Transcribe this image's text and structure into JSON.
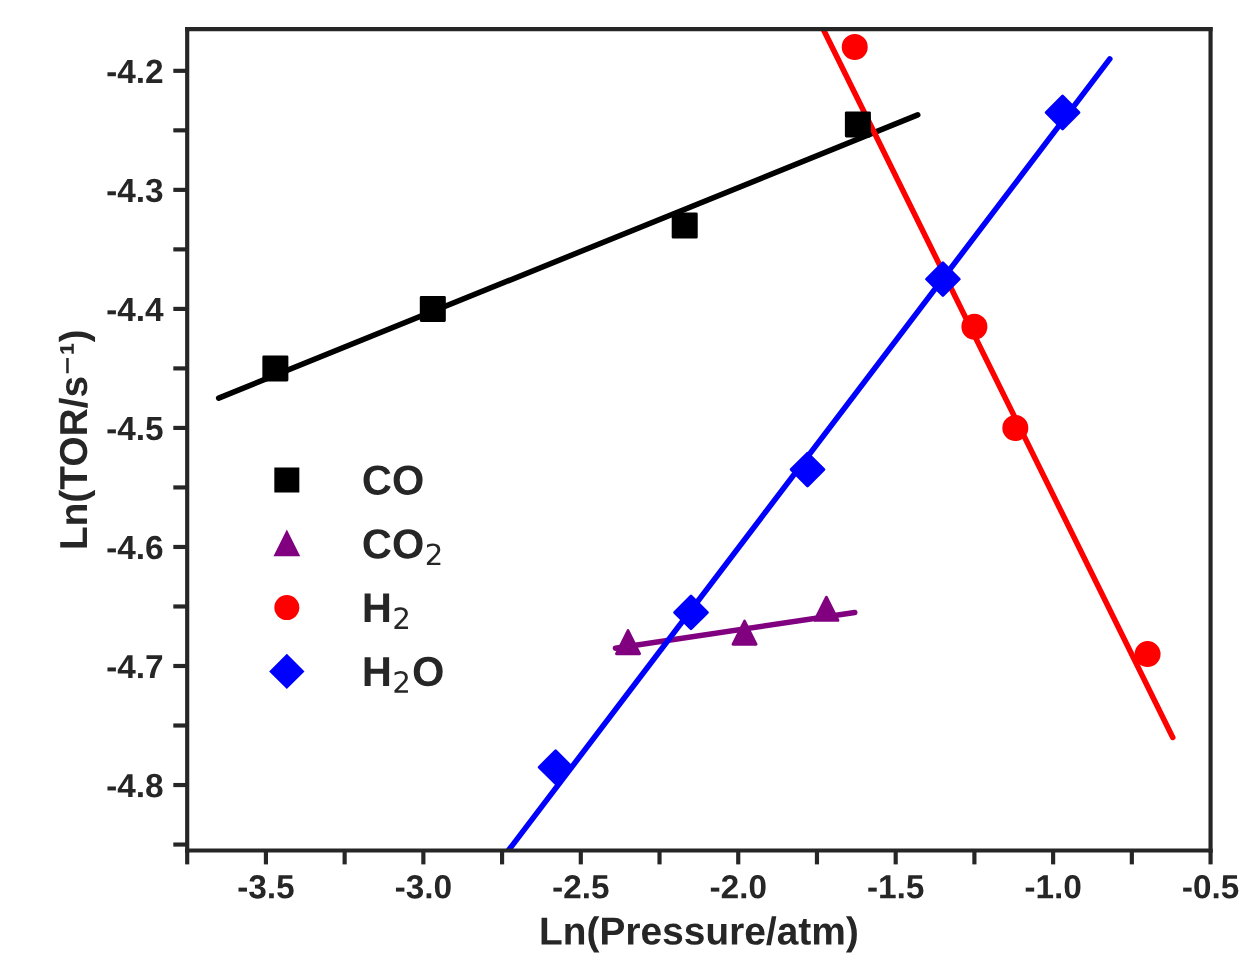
{
  "chart_data": {
    "type": "scatter",
    "xlabel": "Ln(Pressure/atm)",
    "ylabel": "Ln(TOR/s⁻¹)",
    "xlim": [
      -3.75,
      -0.5
    ],
    "ylim": [
      -4.855,
      -4.165
    ],
    "xticks": [
      {
        "value": -3.75,
        "label": null
      },
      -3.5,
      {
        "value": -3.25,
        "label": null
      },
      {
        "value": -3.0,
        "label": "-3.0"
      },
      {
        "value": -2.75,
        "label": null
      },
      -2.5,
      {
        "value": -2.25,
        "label": null
      },
      {
        "value": -2.0,
        "label": "-2.0"
      },
      {
        "value": -1.75,
        "label": null
      },
      -1.5,
      {
        "value": -1.25,
        "label": null
      },
      {
        "value": -1.0,
        "label": "-1.0"
      },
      {
        "value": -0.75,
        "label": null
      },
      -0.5
    ],
    "yticks": [
      {
        "value": -4.85,
        "label": null
      },
      -4.8,
      {
        "value": -4.75,
        "label": null
      },
      -4.7,
      {
        "value": -4.65,
        "label": null
      },
      -4.6,
      {
        "value": -4.55,
        "label": null
      },
      -4.5,
      {
        "value": -4.45,
        "label": null
      },
      -4.4,
      {
        "value": -4.35,
        "label": null
      },
      -4.3,
      {
        "value": -4.25,
        "label": null
      },
      -4.2
    ],
    "grid": false,
    "legend": "left",
    "series": [
      {
        "name": "CO",
        "marker": "square",
        "color": "#000000",
        "x": [
          -3.47,
          -2.97,
          -2.17,
          -1.62
        ],
        "values": [
          -4.45,
          -4.4,
          -4.33,
          -4.245
        ]
      },
      {
        "name": "CO$_{2}$",
        "marker": "triangle",
        "color": "#800080",
        "x": [
          -2.35,
          -1.98,
          -1.72
        ],
        "values": [
          -4.68,
          -4.672,
          -4.652
        ]
      },
      {
        "name": "H$_{2}$",
        "marker": "circle",
        "color": "#ff0000",
        "x": [
          -1.63,
          -1.25,
          -1.12,
          -0.7
        ],
        "values": [
          -4.18,
          -4.415,
          -4.5,
          -4.69
        ]
      },
      {
        "name": "H$_{2}$O",
        "marker": "diamond",
        "color": "#0000ff",
        "x": [
          -2.58,
          -2.15,
          -1.78,
          -1.35,
          -0.97
        ],
        "values": [
          -4.785,
          -4.655,
          -4.535,
          -4.375,
          -4.235
        ]
      },
      {
        "type": "line",
        "line_style": "solid",
        "color": "#000000",
        "x": [
          -3.65,
          -1.43
        ],
        "values": [
          -4.475,
          -4.237
        ]
      },
      {
        "type": "line",
        "line_style": "solid",
        "color": "#800080",
        "x": [
          -2.39,
          -1.63
        ],
        "values": [
          -4.685,
          -4.655
        ]
      },
      {
        "type": "line",
        "line_style": "solid",
        "color": "#ff0000",
        "x": [
          -1.73,
          -0.62
        ],
        "values": [
          -4.165,
          -4.76
        ]
      },
      {
        "type": "line",
        "line_style": "solid",
        "color": "#0000ff",
        "x": [
          -2.73,
          -0.82
        ],
        "values": [
          -4.855,
          -4.19
        ]
      }
    ]
  }
}
